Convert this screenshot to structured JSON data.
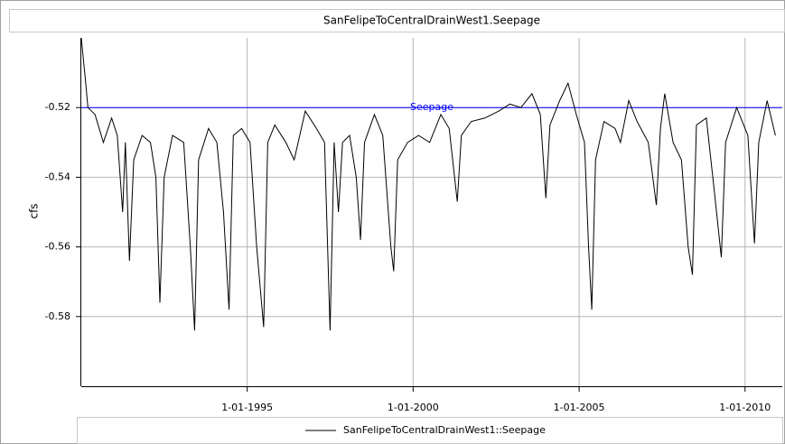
{
  "chart_data": {
    "type": "line",
    "title": "SanFelipeToCentralDrainWest1.Seepage",
    "ylabel": "cfs",
    "x": [
      "1990-01-01",
      "1990-02-15",
      "1990-03-15",
      "1990-06-01",
      "1990-09-01",
      "1990-12-01",
      "1991-02-01",
      "1991-04-01",
      "1991-05-01",
      "1991-06-15",
      "1991-08-01",
      "1991-11-01",
      "1992-02-01",
      "1992-04-01",
      "1992-05-15",
      "1992-07-01",
      "1992-10-01",
      "1993-02-01",
      "1993-04-15",
      "1993-06-01",
      "1993-07-15",
      "1993-11-01",
      "1994-02-01",
      "1994-04-15",
      "1994-06-15",
      "1994-08-01",
      "1994-11-01",
      "1995-02-01",
      "1995-04-15",
      "1995-07-01",
      "1995-08-15",
      "1995-11-01",
      "1996-03-01",
      "1996-06-01",
      "1996-10-01",
      "1997-02-01",
      "1997-05-01",
      "1997-07-01",
      "1997-08-15",
      "1997-10-01",
      "1997-11-15",
      "1998-02-01",
      "1998-04-15",
      "1998-06-01",
      "1998-07-15",
      "1998-11-01",
      "1999-02-01",
      "1999-05-01",
      "1999-06-01",
      "1999-07-15",
      "1999-11-01",
      "2000-03-01",
      "2000-07-01",
      "2000-11-01",
      "2001-02-01",
      "2001-05-01",
      "2001-06-15",
      "2001-10-01",
      "2002-03-01",
      "2002-08-01",
      "2002-12-01",
      "2003-04-01",
      "2003-08-01",
      "2003-11-01",
      "2004-01-01",
      "2004-02-15",
      "2004-06-01",
      "2004-09-01",
      "2004-12-01",
      "2005-03-01",
      "2005-04-15",
      "2005-05-20",
      "2005-07-01",
      "2005-10-01",
      "2006-02-01",
      "2006-04-01",
      "2006-07-01",
      "2006-10-01",
      "2007-02-01",
      "2007-05-01",
      "2007-06-15",
      "2007-08-01",
      "2007-11-01",
      "2008-02-01",
      "2008-04-15",
      "2008-06-01",
      "2008-07-15",
      "2008-11-01",
      "2009-02-01",
      "2009-04-15",
      "2009-06-01",
      "2009-10-01",
      "2010-02-01",
      "2010-04-15",
      "2010-06-01",
      "2010-09-01",
      "2010-12-01"
    ],
    "series": [
      {
        "name": "SanFelipeToCentralDrainWest1::Seepage",
        "color": "#000000",
        "values": [
          -0.5,
          -0.512,
          -0.52,
          -0.522,
          -0.53,
          -0.523,
          -0.528,
          -0.55,
          -0.53,
          -0.564,
          -0.535,
          -0.528,
          -0.53,
          -0.54,
          -0.576,
          -0.54,
          -0.528,
          -0.53,
          -0.56,
          -0.584,
          -0.535,
          -0.526,
          -0.53,
          -0.55,
          -0.578,
          -0.528,
          -0.526,
          -0.53,
          -0.56,
          -0.583,
          -0.53,
          -0.525,
          -0.53,
          -0.535,
          -0.521,
          -0.526,
          -0.53,
          -0.584,
          -0.53,
          -0.55,
          -0.53,
          -0.528,
          -0.54,
          -0.558,
          -0.53,
          -0.522,
          -0.528,
          -0.56,
          -0.567,
          -0.535,
          -0.53,
          -0.528,
          -0.53,
          -0.522,
          -0.526,
          -0.547,
          -0.528,
          -0.524,
          -0.523,
          -0.521,
          -0.519,
          -0.52,
          -0.516,
          -0.522,
          -0.546,
          -0.525,
          -0.518,
          -0.513,
          -0.522,
          -0.53,
          -0.56,
          -0.578,
          -0.535,
          -0.524,
          -0.526,
          -0.53,
          -0.518,
          -0.524,
          -0.53,
          -0.548,
          -0.526,
          -0.516,
          -0.53,
          -0.535,
          -0.56,
          -0.568,
          -0.525,
          -0.523,
          -0.545,
          -0.563,
          -0.53,
          -0.52,
          -0.528,
          -0.559,
          -0.53,
          -0.518,
          -0.528
        ]
      }
    ],
    "reference_line": {
      "label": "Seepage",
      "value": -0.52,
      "color": "#0000ff"
    },
    "xlim": [
      "1990-01-01",
      "2011-02-15"
    ],
    "ylim": [
      -0.6,
      -0.5
    ],
    "xticks": [
      {
        "value": "1995-01-01",
        "label": "1-01-1995"
      },
      {
        "value": "2000-01-01",
        "label": "1-01-2000"
      },
      {
        "value": "2005-01-01",
        "label": "1-01-2005"
      },
      {
        "value": "2010-01-01",
        "label": "1-01-2010"
      }
    ],
    "yticks": [
      -0.52,
      -0.54,
      -0.56,
      -0.58
    ],
    "grid": true,
    "legend": "bottom"
  }
}
